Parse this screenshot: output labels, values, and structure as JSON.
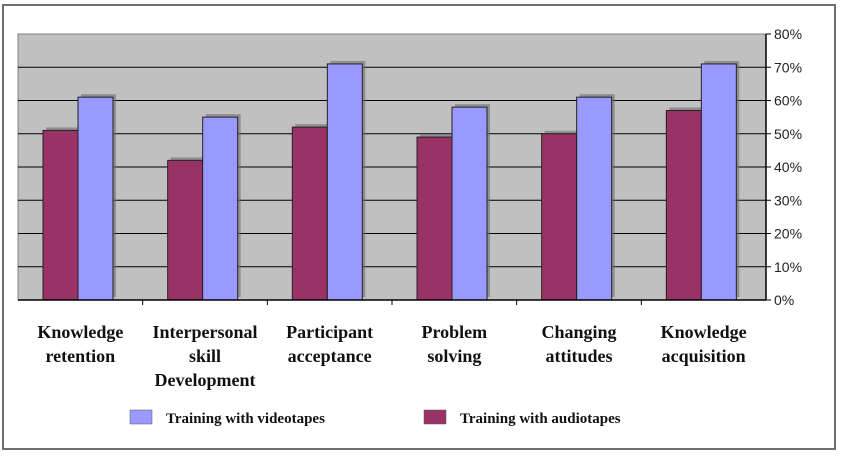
{
  "chart_data": {
    "type": "bar",
    "categories": [
      [
        "Knowledge",
        "retention"
      ],
      [
        "Interpersonal",
        "skill",
        "Development"
      ],
      [
        "Participant",
        "acceptance"
      ],
      [
        "Problem",
        "solving"
      ],
      [
        "Changing",
        "attitudes"
      ],
      [
        "Knowledge",
        "acquisition"
      ]
    ],
    "series": [
      {
        "name": "Training with audiotapes",
        "color": "#993366",
        "values": [
          51,
          42,
          52,
          49,
          50,
          57
        ]
      },
      {
        "name": "Training with videotapes",
        "color": "#9999ff",
        "values": [
          61,
          55,
          71,
          58,
          61,
          71
        ]
      }
    ],
    "ylim": [
      0,
      80
    ],
    "yticks": [
      "0%",
      "10%",
      "20%",
      "30%",
      "40%",
      "50%",
      "60%",
      "70%",
      "80%"
    ],
    "y_axis_position": "right",
    "grid": true,
    "plot_background": "#c0c0c0",
    "legend_position": "bottom",
    "legend_order": [
      1,
      0
    ]
  }
}
